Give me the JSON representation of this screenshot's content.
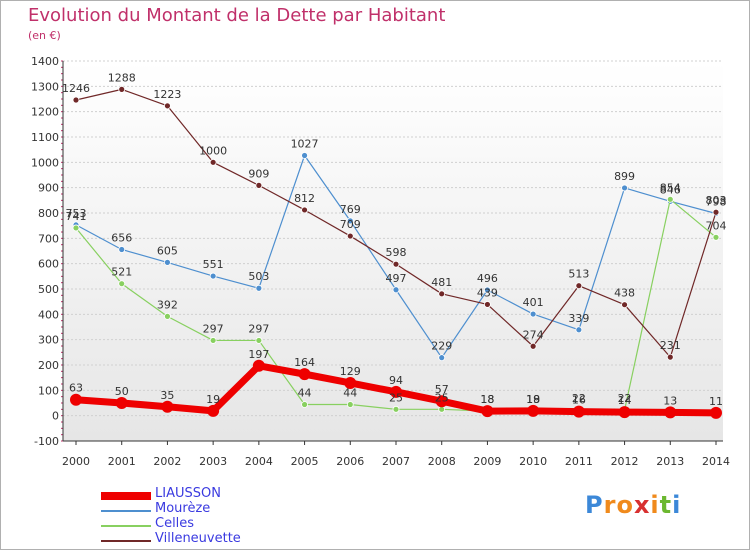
{
  "chart_data": {
    "type": "line",
    "title": "Evolution du Montant de la Dette par Habitant",
    "unit": "(en €)",
    "x": [
      "2000",
      "2001",
      "2002",
      "2003",
      "2004",
      "2005",
      "2006",
      "2007",
      "2008",
      "2009",
      "2010",
      "2011",
      "2012",
      "2013",
      "2014"
    ],
    "ylim": [
      -100,
      1400
    ],
    "yticks": [
      -100,
      0,
      100,
      200,
      300,
      400,
      500,
      600,
      700,
      800,
      900,
      1000,
      1100,
      1200,
      1300,
      1400
    ],
    "grid": "horizontal",
    "legend_position": "bottom-left",
    "series": [
      {
        "name": "LIAUSSON",
        "color": "#ee0000",
        "values": [
          63,
          50,
          35,
          19,
          197,
          164,
          129,
          94,
          57,
          18,
          19,
          16,
          14,
          13,
          11
        ],
        "labels": [
          "63",
          "50",
          "35",
          "19",
          "197",
          "164",
          "129",
          "94",
          "57",
          "18",
          "19",
          "16",
          "14",
          "13",
          "11"
        ]
      },
      {
        "name": "Mourèze",
        "color": "#4e8fcf",
        "values": [
          753,
          656,
          605,
          551,
          503,
          1027,
          769,
          497,
          229,
          496,
          401,
          339,
          899,
          846,
          798
        ],
        "labels": [
          "753",
          "656",
          "605",
          "551",
          "503",
          "1027",
          "769",
          "497",
          "229",
          "496",
          "401",
          "339",
          "899",
          "846",
          "798"
        ]
      },
      {
        "name": "Celles",
        "color": "#88d060",
        "values": [
          741,
          521,
          392,
          297,
          297,
          44,
          44,
          25,
          25,
          18,
          18,
          22,
          22,
          854,
          704
        ],
        "labels": [
          "741",
          "521",
          "392",
          "297",
          "297",
          "44",
          "44",
          "25",
          "25",
          "18",
          "18",
          "22",
          "22",
          "854",
          "704"
        ]
      },
      {
        "name": "Villeneuvette",
        "color": "#702828",
        "values": [
          1246,
          1288,
          1223,
          1000,
          909,
          812,
          709,
          598,
          481,
          439,
          274,
          513,
          438,
          231,
          803
        ],
        "labels": [
          "1246",
          "1288",
          "1223",
          "1000",
          "909",
          "812",
          "709",
          "598",
          "481",
          "439",
          "274",
          "513",
          "438",
          "231",
          "803"
        ]
      }
    ]
  },
  "logo": {
    "letters": [
      "P",
      "r",
      "o",
      "x",
      "i",
      "t",
      "i"
    ],
    "colors": [
      "#3c88d8",
      "#f08a1c",
      "#f08a1c",
      "#d83030",
      "#f08a1c",
      "#6cb830",
      "#3c88d8"
    ]
  }
}
